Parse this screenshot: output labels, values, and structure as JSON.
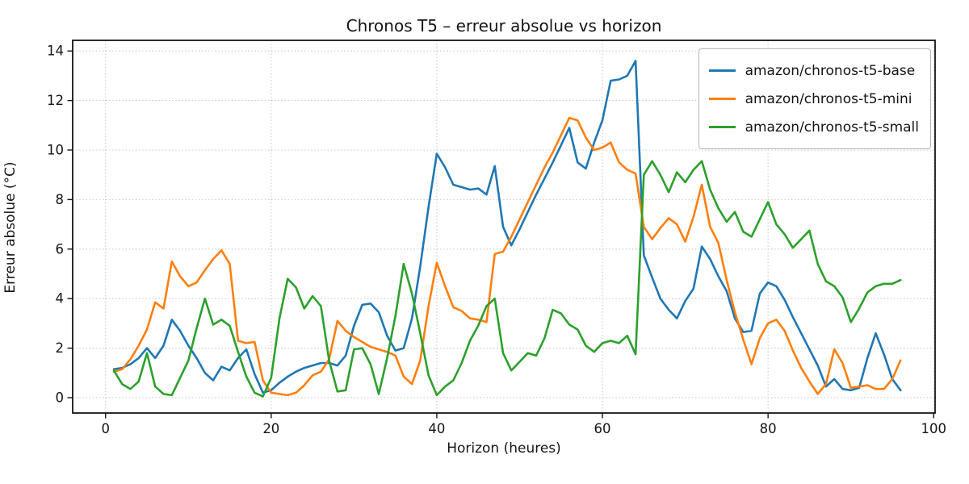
{
  "chart_data": {
    "type": "line",
    "title": "Chronos T5 – erreur absolue vs horizon",
    "xlabel": "Horizon (heures)",
    "ylabel": "Erreur absolue (°C)",
    "grid": "dotted",
    "legend_position": "upper right",
    "xlim": [
      -3.97,
      100.17
    ],
    "ylim": [
      -0.62,
      14.43
    ],
    "xticks": [
      0,
      20,
      40,
      60,
      80,
      100
    ],
    "yticks": [
      0,
      2,
      4,
      6,
      8,
      10,
      12,
      14
    ],
    "x_range": {
      "start": 1,
      "end": 96,
      "step": 1
    },
    "series": [
      {
        "name": "amazon/chronos-t5-base",
        "color": "#1f77b4",
        "values": [
          1.15,
          1.2,
          1.35,
          1.6,
          2.0,
          1.6,
          2.1,
          3.15,
          2.7,
          2.1,
          1.6,
          1.0,
          0.7,
          1.25,
          1.1,
          1.6,
          1.95,
          0.95,
          0.2,
          0.3,
          0.6,
          0.85,
          1.05,
          1.2,
          1.3,
          1.4,
          1.4,
          1.3,
          1.7,
          2.9,
          3.75,
          3.8,
          3.45,
          2.5,
          1.9,
          2.0,
          3.2,
          5.3,
          7.7,
          9.85,
          9.3,
          8.6,
          8.5,
          8.4,
          8.45,
          8.2,
          9.35,
          6.9,
          6.15,
          6.8,
          7.5,
          8.2,
          8.85,
          9.5,
          10.2,
          10.9,
          9.5,
          9.25,
          10.3,
          11.2,
          12.8,
          12.85,
          13.0,
          13.6,
          5.75,
          4.85,
          4.0,
          3.55,
          3.2,
          3.9,
          4.4,
          6.1,
          5.6,
          4.9,
          4.3,
          3.2,
          2.65,
          2.7,
          4.2,
          4.65,
          4.5,
          3.95,
          3.25,
          2.6,
          1.95,
          1.3,
          0.45,
          0.75,
          0.35,
          0.3,
          0.4,
          1.6,
          2.6,
          1.75,
          0.75,
          0.3
        ]
      },
      {
        "name": "amazon/chronos-t5-mini",
        "color": "#ff7f0e",
        "values": [
          1.05,
          1.15,
          1.55,
          2.1,
          2.75,
          3.85,
          3.6,
          5.5,
          4.9,
          4.5,
          4.65,
          5.15,
          5.6,
          5.95,
          5.4,
          2.3,
          2.2,
          2.25,
          0.7,
          0.2,
          0.15,
          0.1,
          0.2,
          0.5,
          0.9,
          1.05,
          1.55,
          3.1,
          2.7,
          2.45,
          2.25,
          2.05,
          1.95,
          1.85,
          1.7,
          0.85,
          0.55,
          1.5,
          3.7,
          5.45,
          4.5,
          3.65,
          3.5,
          3.2,
          3.15,
          3.05,
          5.8,
          5.9,
          6.5,
          7.2,
          7.9,
          8.6,
          9.3,
          9.9,
          10.6,
          11.3,
          11.2,
          10.5,
          10.0,
          10.1,
          10.3,
          9.5,
          9.2,
          9.05,
          6.9,
          6.4,
          6.85,
          7.25,
          7.0,
          6.3,
          7.3,
          8.6,
          6.9,
          6.25,
          4.75,
          3.45,
          2.35,
          1.35,
          2.4,
          3.0,
          3.15,
          2.7,
          1.9,
          1.2,
          0.65,
          0.15,
          0.55,
          1.95,
          1.4,
          0.4,
          0.45,
          0.5,
          0.35,
          0.35,
          0.75,
          1.5
        ]
      },
      {
        "name": "amazon/chronos-t5-small",
        "color": "#2ca02c",
        "values": [
          1.1,
          0.55,
          0.35,
          0.65,
          1.8,
          0.45,
          0.15,
          0.1,
          0.8,
          1.5,
          2.8,
          4.0,
          2.95,
          3.15,
          2.9,
          1.85,
          0.85,
          0.2,
          0.05,
          0.8,
          3.2,
          4.8,
          4.45,
          3.6,
          4.1,
          3.7,
          1.5,
          0.25,
          0.3,
          1.95,
          2.0,
          1.35,
          0.15,
          1.6,
          3.3,
          5.4,
          4.2,
          2.6,
          0.9,
          0.1,
          0.45,
          0.7,
          1.4,
          2.3,
          2.9,
          3.7,
          4.0,
          1.8,
          1.1,
          1.45,
          1.8,
          1.7,
          2.4,
          3.55,
          3.4,
          2.95,
          2.75,
          2.1,
          1.85,
          2.2,
          2.3,
          2.2,
          2.5,
          1.75,
          9.0,
          9.55,
          9.0,
          8.3,
          9.1,
          8.7,
          9.2,
          9.55,
          8.4,
          7.65,
          7.1,
          7.5,
          6.7,
          6.5,
          7.2,
          7.9,
          7.0,
          6.6,
          6.05,
          6.4,
          6.75,
          5.4,
          4.7,
          4.5,
          4.05,
          3.05,
          3.6,
          4.25,
          4.5,
          4.6,
          4.6,
          4.75
        ]
      }
    ]
  }
}
